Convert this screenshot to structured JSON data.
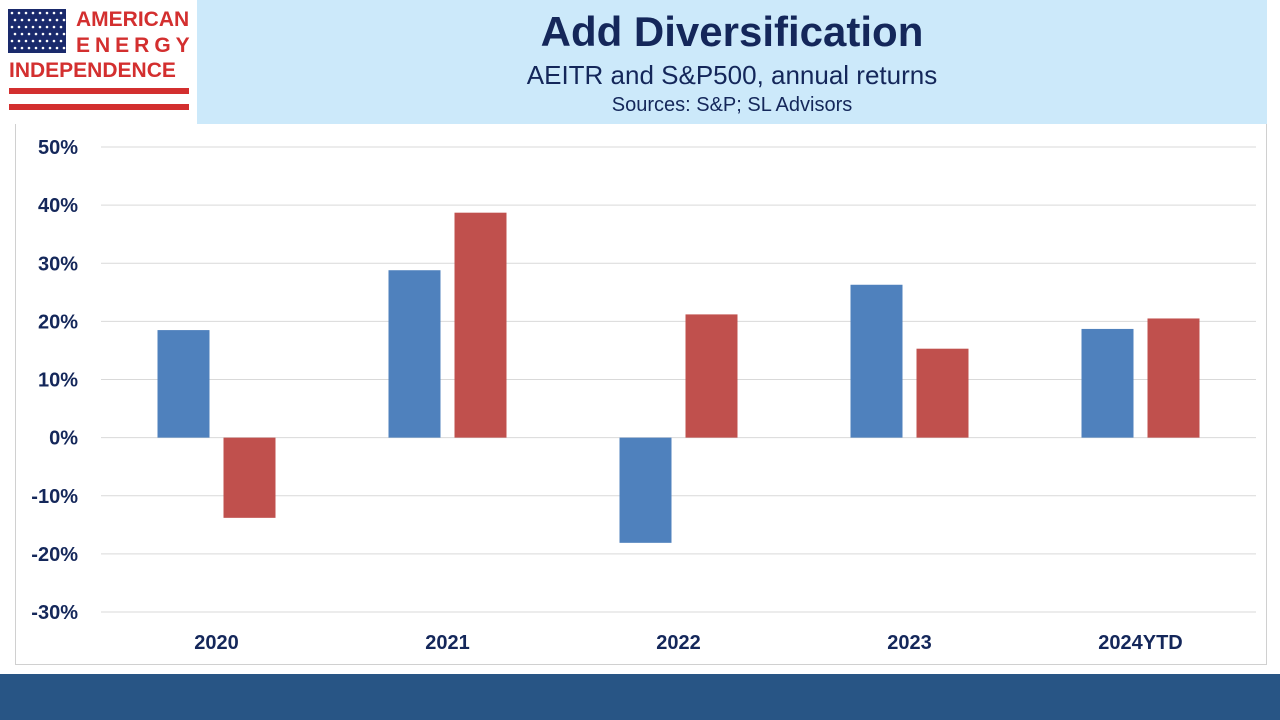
{
  "logo": {
    "line1": "AMERICAN",
    "line2": "ENERGY",
    "line3": "INDEPENDENCE",
    "colors": {
      "red": "#d32f2f",
      "blue": "#1a2a6c"
    }
  },
  "header": {
    "title": "Add Diversification",
    "subtitle": "AEITR and S&P500, annual returns",
    "sources": "Sources: S&P; SL Advisors"
  },
  "chart_data": {
    "type": "bar",
    "categories": [
      "2020",
      "2021",
      "2022",
      "2023",
      "2024YTD"
    ],
    "series": [
      {
        "values": [
          18.5,
          28.8,
          -18.1,
          26.3,
          18.7
        ],
        "color": "#4f81bd"
      },
      {
        "values": [
          -13.8,
          38.7,
          21.2,
          15.3,
          20.5
        ],
        "color": "#c0504d"
      }
    ],
    "ylim": [
      -30,
      50
    ],
    "yticks": [
      50,
      40,
      30,
      20,
      10,
      0,
      -10,
      -20,
      -30
    ],
    "ytick_labels": [
      "50%",
      "40%",
      "30%",
      "20%",
      "10%",
      "0%",
      "-10%",
      "-20%",
      "-30%"
    ],
    "grid": true,
    "legend": "none"
  }
}
